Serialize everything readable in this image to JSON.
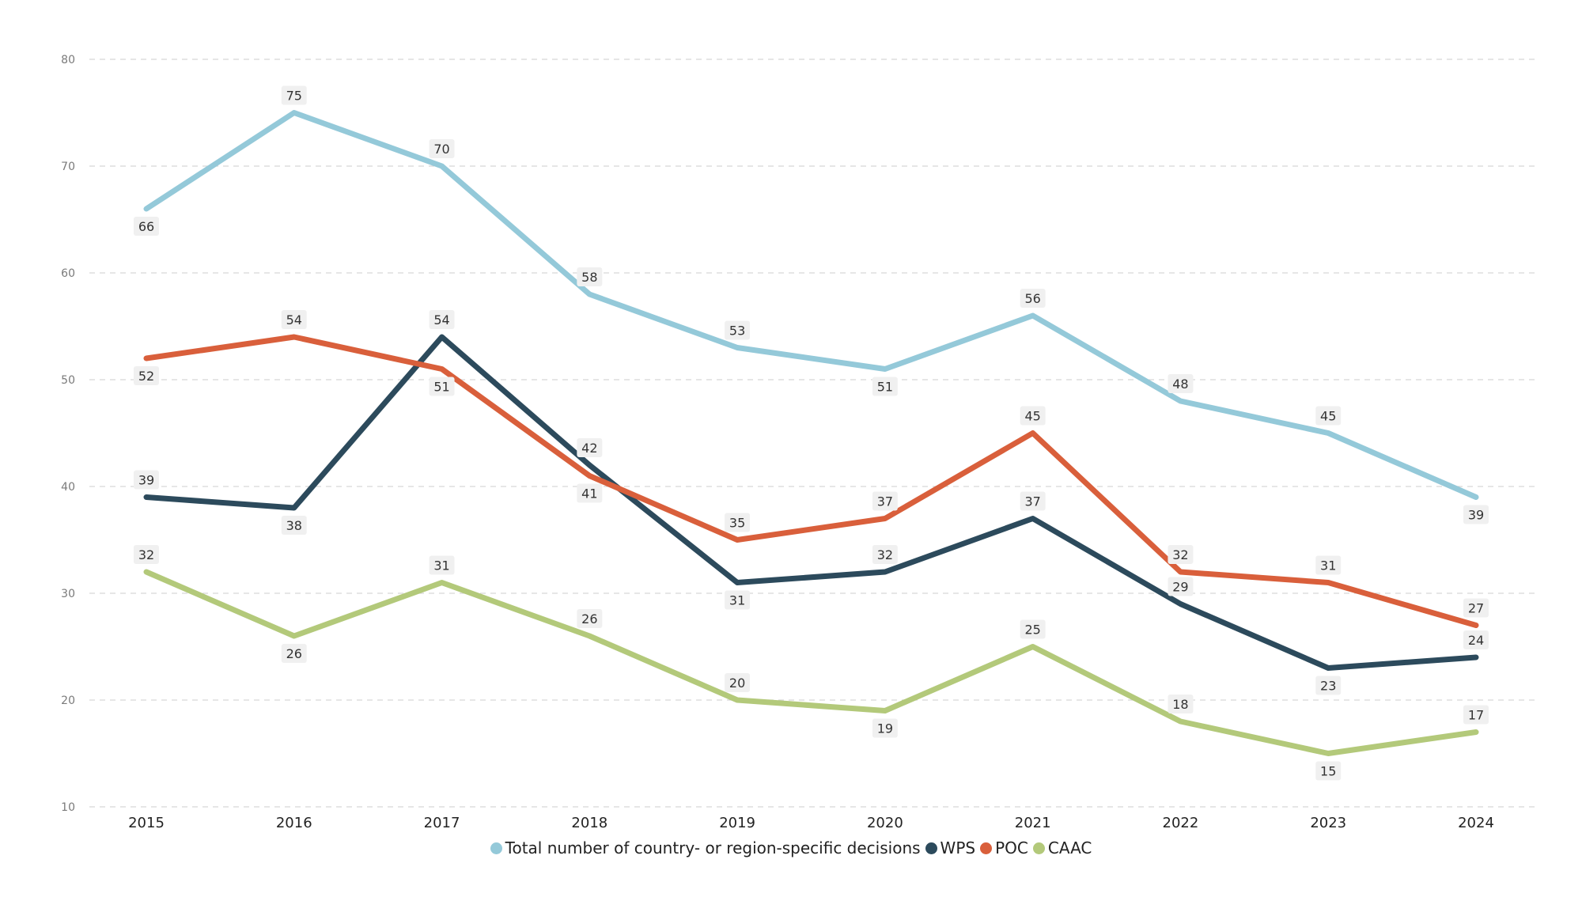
{
  "chart_data": {
    "type": "line",
    "title": "",
    "xlabel": "",
    "ylabel": "",
    "x": [
      "2015",
      "2016",
      "2017",
      "2018",
      "2019",
      "2020",
      "2021",
      "2022",
      "2023",
      "2024"
    ],
    "ylim": [
      10,
      80
    ],
    "yticks": [
      10,
      20,
      30,
      40,
      50,
      60,
      70,
      80
    ],
    "grid": true,
    "legend_position": "bottom-center",
    "series": [
      {
        "name": "Total number of country- or region-specific decisions",
        "color": "#94c9d9",
        "values": [
          66,
          75,
          70,
          58,
          53,
          51,
          56,
          48,
          45,
          39
        ],
        "label_pos": [
          "below",
          "above",
          "above",
          "above",
          "above",
          "below",
          "above",
          "above",
          "above",
          "below"
        ]
      },
      {
        "name": "WPS",
        "color": "#2c4a5c",
        "values": [
          39,
          38,
          54,
          42,
          31,
          32,
          37,
          29,
          23,
          24
        ],
        "label_pos": [
          "above",
          "below",
          "above",
          "above",
          "below",
          "above",
          "above",
          "above",
          "below",
          "above"
        ]
      },
      {
        "name": "POC",
        "color": "#d95f3b",
        "values": [
          52,
          54,
          51,
          41,
          35,
          37,
          45,
          32,
          31,
          27
        ],
        "label_pos": [
          "below",
          "above",
          "below",
          "below",
          "above",
          "above",
          "above",
          "above",
          "above",
          "above"
        ]
      },
      {
        "name": "CAAC",
        "color": "#b3c97a",
        "values": [
          32,
          26,
          31,
          26,
          20,
          19,
          25,
          18,
          15,
          17
        ],
        "label_pos": [
          "above",
          "below",
          "above",
          "above",
          "above",
          "below",
          "above",
          "above",
          "below",
          "above"
        ]
      }
    ]
  }
}
